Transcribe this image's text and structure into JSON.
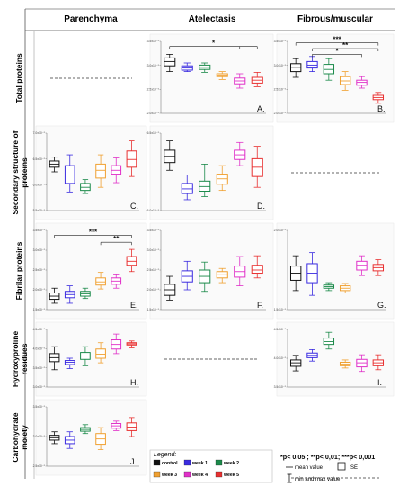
{
  "column_headers": [
    "Parenchyma",
    "Atelectasis",
    "Fibrous/muscular"
  ],
  "row_headers": [
    "Total proteins",
    "Secondary structure of proteins",
    "Fibrilar proteins",
    "Hydroxyproline residues",
    "Carbohydrate moiety"
  ],
  "groups": [
    {
      "key": "control",
      "label": "control",
      "color": "#111111"
    },
    {
      "key": "week1",
      "label": "week 1",
      "color": "#3a2be0"
    },
    {
      "key": "week2",
      "label": "week 2",
      "color": "#1b8a4a"
    },
    {
      "key": "week3",
      "label": "week 3",
      "color": "#f0a030"
    },
    {
      "key": "week4",
      "label": "week 4",
      "color": "#e030c8"
    },
    {
      "key": "week5",
      "label": "week 5",
      "color": "#e83030"
    }
  ],
  "legend": {
    "title": "Legend:",
    "pvalues": "*p< 0,05 ; **p< 0,01; ***p< 0,001",
    "mean_label": "mean value",
    "se_label": "SE",
    "minmax_label": "min and max value"
  },
  "chart_data": [
    {
      "type": "box",
      "panel": "A.",
      "row": 0,
      "col": 1,
      "ylim": [
        0,
        1
      ],
      "yticks": [
        "3.5x10⁻⁵",
        "3.0x10⁻⁵",
        "2.5x10⁻⁵",
        "2.0x10⁻⁵"
      ],
      "boxes": [
        {
          "group": "control",
          "min": 0.58,
          "q1": 0.66,
          "median": 0.71,
          "mean": 0.72,
          "q3": 0.77,
          "max": 0.82
        },
        {
          "group": "week1",
          "min": 0.58,
          "q1": 0.6,
          "median": 0.63,
          "mean": 0.63,
          "q3": 0.66,
          "max": 0.7
        },
        {
          "group": "week2",
          "min": 0.57,
          "q1": 0.61,
          "median": 0.64,
          "mean": 0.64,
          "q3": 0.67,
          "max": 0.7
        },
        {
          "group": "week3",
          "min": 0.47,
          "q1": 0.51,
          "median": 0.53,
          "mean": 0.53,
          "q3": 0.55,
          "max": 0.58
        },
        {
          "group": "week4",
          "min": 0.35,
          "q1": 0.41,
          "median": 0.45,
          "mean": 0.45,
          "q3": 0.49,
          "max": 0.55
        },
        {
          "group": "week5",
          "min": 0.37,
          "q1": 0.42,
          "median": 0.45,
          "mean": 0.46,
          "q3": 0.5,
          "max": 0.57
        }
      ],
      "significance": [
        {
          "from": 0,
          "to": 5,
          "label": "*",
          "level": 0.93,
          "drop": 4
        }
      ]
    },
    {
      "type": "box",
      "panel": "B.",
      "row": 0,
      "col": 2,
      "ylim": [
        0,
        1
      ],
      "yticks": [
        "3.5x10⁻⁵",
        "3.0x10⁻⁵",
        "2.5x10⁻⁵",
        "2.0x10⁻⁵"
      ],
      "boxes": [
        {
          "group": "control",
          "min": 0.5,
          "q1": 0.58,
          "median": 0.63,
          "mean": 0.64,
          "q3": 0.69,
          "max": 0.76
        },
        {
          "group": "week1",
          "min": 0.58,
          "q1": 0.63,
          "median": 0.67,
          "mean": 0.67,
          "q3": 0.72,
          "max": 0.79
        },
        {
          "group": "week2",
          "min": 0.46,
          "q1": 0.55,
          "median": 0.6,
          "mean": 0.61,
          "q3": 0.68,
          "max": 0.76
        },
        {
          "group": "week3",
          "min": 0.32,
          "q1": 0.4,
          "median": 0.45,
          "mean": 0.45,
          "q3": 0.51,
          "max": 0.58
        },
        {
          "group": "week4",
          "min": 0.35,
          "q1": 0.39,
          "median": 0.43,
          "mean": 0.43,
          "q3": 0.46,
          "max": 0.51
        },
        {
          "group": "week5",
          "min": 0.14,
          "q1": 0.19,
          "median": 0.22,
          "mean": 0.22,
          "q3": 0.25,
          "max": 0.29
        }
      ],
      "significance": [
        {
          "from": 0,
          "to": 5,
          "label": "***",
          "level": 0.98
        },
        {
          "from": 1,
          "to": 5,
          "label": "**",
          "level": 0.9
        },
        {
          "from": 1,
          "to": 4,
          "label": "*",
          "level": 0.82
        }
      ]
    },
    {
      "type": "box",
      "panel": "C.",
      "row": 1,
      "col": 0,
      "ylim": [
        0,
        1
      ],
      "yticks": [
        "7.0x10⁻⁵",
        "6.5x10⁻⁵",
        "6.0x10⁻⁵",
        "5.5x10⁻⁵"
      ],
      "boxes": [
        {
          "group": "control",
          "min": 0.5,
          "q1": 0.56,
          "median": 0.6,
          "mean": 0.6,
          "q3": 0.64,
          "max": 0.69
        },
        {
          "group": "week1",
          "min": 0.24,
          "q1": 0.35,
          "median": 0.46,
          "mean": 0.46,
          "q3": 0.58,
          "max": 0.72
        },
        {
          "group": "week2",
          "min": 0.22,
          "q1": 0.26,
          "median": 0.3,
          "mean": 0.3,
          "q3": 0.35,
          "max": 0.4
        },
        {
          "group": "week3",
          "min": 0.3,
          "q1": 0.42,
          "median": 0.52,
          "mean": 0.52,
          "q3": 0.6,
          "max": 0.72
        },
        {
          "group": "week4",
          "min": 0.36,
          "q1": 0.47,
          "median": 0.52,
          "mean": 0.52,
          "q3": 0.58,
          "max": 0.68
        },
        {
          "group": "week5",
          "min": 0.44,
          "q1": 0.56,
          "median": 0.66,
          "mean": 0.66,
          "q3": 0.77,
          "max": 0.9
        }
      ],
      "significance": []
    },
    {
      "type": "box",
      "panel": "D.",
      "row": 1,
      "col": 1,
      "ylim": [
        0,
        1
      ],
      "yticks": [
        "6.5x10⁻⁵",
        "6.0x10⁻⁵"
      ],
      "boxes": [
        {
          "group": "control",
          "min": 0.52,
          "q1": 0.62,
          "median": 0.69,
          "mean": 0.7,
          "q3": 0.78,
          "max": 0.9
        },
        {
          "group": "week1",
          "min": 0.14,
          "q1": 0.22,
          "median": 0.28,
          "mean": 0.28,
          "q3": 0.35,
          "max": 0.46
        },
        {
          "group": "week2",
          "min": 0.18,
          "q1": 0.25,
          "median": 0.31,
          "mean": 0.31,
          "q3": 0.38,
          "max": 0.6
        },
        {
          "group": "week3",
          "min": 0.26,
          "q1": 0.34,
          "median": 0.41,
          "mean": 0.41,
          "q3": 0.47,
          "max": 0.58
        },
        {
          "group": "week4",
          "min": 0.58,
          "q1": 0.66,
          "median": 0.72,
          "mean": 0.72,
          "q3": 0.78,
          "max": 0.88
        },
        {
          "group": "week5",
          "min": 0.3,
          "q1": 0.44,
          "median": 0.56,
          "mean": 0.56,
          "q3": 0.67,
          "max": 0.83
        }
      ],
      "significance": []
    },
    {
      "type": "box",
      "panel": "E.",
      "row": 2,
      "col": 0,
      "ylim": [
        0,
        1
      ],
      "yticks": [
        "3.5x10⁻⁵",
        "3.0x10⁻⁵",
        "2.5x10⁻⁵",
        "2.0x10⁻⁵",
        "1.5x10⁻⁵"
      ],
      "boxes": [
        {
          "group": "control",
          "min": 0.08,
          "q1": 0.13,
          "median": 0.17,
          "mean": 0.17,
          "q3": 0.21,
          "max": 0.27
        },
        {
          "group": "week1",
          "min": 0.08,
          "q1": 0.15,
          "median": 0.19,
          "mean": 0.19,
          "q3": 0.23,
          "max": 0.3
        },
        {
          "group": "week2",
          "min": 0.14,
          "q1": 0.17,
          "median": 0.2,
          "mean": 0.2,
          "q3": 0.23,
          "max": 0.27
        },
        {
          "group": "week3",
          "min": 0.26,
          "q1": 0.31,
          "median": 0.35,
          "mean": 0.35,
          "q3": 0.4,
          "max": 0.47
        },
        {
          "group": "week4",
          "min": 0.27,
          "q1": 0.32,
          "median": 0.36,
          "mean": 0.36,
          "q3": 0.4,
          "max": 0.45
        },
        {
          "group": "week5",
          "min": 0.48,
          "q1": 0.56,
          "median": 0.61,
          "mean": 0.61,
          "q3": 0.67,
          "max": 0.76
        }
      ],
      "significance": [
        {
          "from": 0,
          "to": 5,
          "label": "***",
          "level": 0.94
        },
        {
          "from": 3,
          "to": 5,
          "label": "**",
          "level": 0.85
        }
      ]
    },
    {
      "type": "box",
      "panel": "F.",
      "row": 2,
      "col": 1,
      "ylim": [
        0,
        1
      ],
      "yticks": [
        "3.5x10⁻⁵",
        "3.0x10⁻⁵",
        "2.5x10⁻⁵",
        "2.0x10⁻⁵",
        "1.5x10⁻⁵"
      ],
      "boxes": [
        {
          "group": "control",
          "min": 0.12,
          "q1": 0.18,
          "median": 0.25,
          "mean": 0.25,
          "q3": 0.32,
          "max": 0.42
        },
        {
          "group": "week1",
          "min": 0.25,
          "q1": 0.35,
          "median": 0.42,
          "mean": 0.42,
          "q3": 0.49,
          "max": 0.61
        },
        {
          "group": "week2",
          "min": 0.23,
          "q1": 0.34,
          "median": 0.42,
          "mean": 0.42,
          "q3": 0.5,
          "max": 0.6
        },
        {
          "group": "week3",
          "min": 0.34,
          "q1": 0.4,
          "median": 0.44,
          "mean": 0.44,
          "q3": 0.48,
          "max": 0.52
        },
        {
          "group": "week4",
          "min": 0.3,
          "q1": 0.41,
          "median": 0.48,
          "mean": 0.48,
          "q3": 0.55,
          "max": 0.67
        },
        {
          "group": "week5",
          "min": 0.4,
          "q1": 0.46,
          "median": 0.5,
          "mean": 0.5,
          "q3": 0.56,
          "max": 0.68
        }
      ],
      "significance": []
    },
    {
      "type": "box",
      "panel": "G.",
      "row": 2,
      "col": 2,
      "ylim": [
        0,
        1
      ],
      "yticks": [
        "2.0x10⁻⁵",
        "1.5x10⁻⁵"
      ],
      "boxes": [
        {
          "group": "control",
          "min": 0.24,
          "q1": 0.37,
          "median": 0.46,
          "mean": 0.46,
          "q3": 0.55,
          "max": 0.68
        },
        {
          "group": "week1",
          "min": 0.18,
          "q1": 0.34,
          "median": 0.46,
          "mean": 0.46,
          "q3": 0.58,
          "max": 0.72
        },
        {
          "group": "week2",
          "min": 0.24,
          "q1": 0.27,
          "median": 0.29,
          "mean": 0.29,
          "q3": 0.31,
          "max": 0.34
        },
        {
          "group": "week3",
          "min": 0.21,
          "q1": 0.24,
          "median": 0.27,
          "mean": 0.27,
          "q3": 0.3,
          "max": 0.33
        },
        {
          "group": "week4",
          "min": 0.43,
          "q1": 0.5,
          "median": 0.56,
          "mean": 0.56,
          "q3": 0.61,
          "max": 0.68
        },
        {
          "group": "week5",
          "min": 0.43,
          "q1": 0.49,
          "median": 0.53,
          "mean": 0.53,
          "q3": 0.57,
          "max": 0.63
        }
      ],
      "significance": []
    },
    {
      "type": "box",
      "panel": "H.",
      "row": 3,
      "col": 0,
      "ylim": [
        0,
        1
      ],
      "yticks": [
        "4.5x10⁻⁵",
        "4.0x10⁻⁵",
        "3.5x10⁻⁵",
        "3.0x10⁻⁵"
      ],
      "boxes": [
        {
          "group": "control",
          "min": 0.3,
          "q1": 0.44,
          "median": 0.5,
          "mean": 0.51,
          "q3": 0.58,
          "max": 0.7
        },
        {
          "group": "week1",
          "min": 0.32,
          "q1": 0.39,
          "median": 0.43,
          "mean": 0.43,
          "q3": 0.46,
          "max": 0.5
        },
        {
          "group": "week2",
          "min": 0.37,
          "q1": 0.48,
          "median": 0.54,
          "mean": 0.54,
          "q3": 0.6,
          "max": 0.7
        },
        {
          "group": "week3",
          "min": 0.42,
          "q1": 0.5,
          "median": 0.57,
          "mean": 0.57,
          "q3": 0.66,
          "max": 0.77
        },
        {
          "group": "week4",
          "min": 0.58,
          "q1": 0.66,
          "median": 0.75,
          "mean": 0.74,
          "q3": 0.82,
          "max": 0.92
        },
        {
          "group": "week5",
          "min": 0.68,
          "q1": 0.73,
          "median": 0.75,
          "mean": 0.75,
          "q3": 0.77,
          "max": 0.8
        }
      ],
      "significance": []
    },
    {
      "type": "box",
      "panel": "I.",
      "row": 3,
      "col": 2,
      "ylim": [
        0,
        1
      ],
      "yticks": [
        "4.5x10⁻⁵",
        "4.0x10⁻⁵",
        "3.5x10⁻⁵"
      ],
      "boxes": [
        {
          "group": "control",
          "min": 0.28,
          "q1": 0.36,
          "median": 0.42,
          "mean": 0.42,
          "q3": 0.47,
          "max": 0.55
        },
        {
          "group": "week1",
          "min": 0.45,
          "q1": 0.51,
          "median": 0.55,
          "mean": 0.55,
          "q3": 0.59,
          "max": 0.65
        },
        {
          "group": "week2",
          "min": 0.66,
          "q1": 0.74,
          "median": 0.79,
          "mean": 0.79,
          "q3": 0.85,
          "max": 0.95
        },
        {
          "group": "week3",
          "min": 0.33,
          "q1": 0.37,
          "median": 0.4,
          "mean": 0.4,
          "q3": 0.43,
          "max": 0.47
        },
        {
          "group": "week4",
          "min": 0.27,
          "q1": 0.35,
          "median": 0.42,
          "mean": 0.42,
          "q3": 0.48,
          "max": 0.56
        },
        {
          "group": "week5",
          "min": 0.3,
          "q1": 0.37,
          "median": 0.42,
          "mean": 0.42,
          "q3": 0.47,
          "max": 0.56
        }
      ],
      "significance": []
    },
    {
      "type": "box",
      "panel": "J.",
      "row": 4,
      "col": 0,
      "ylim": [
        0,
        1
      ],
      "yticks": [
        "3.5x10⁻⁵",
        "3.0x10⁻⁵",
        "2.5x10⁻⁵"
      ],
      "boxes": [
        {
          "group": "control",
          "min": 0.38,
          "q1": 0.44,
          "median": 0.48,
          "mean": 0.48,
          "q3": 0.52,
          "max": 0.58
        },
        {
          "group": "week1",
          "min": 0.3,
          "q1": 0.38,
          "median": 0.44,
          "mean": 0.44,
          "q3": 0.5,
          "max": 0.58
        },
        {
          "group": "week2",
          "min": 0.55,
          "q1": 0.59,
          "median": 0.62,
          "mean": 0.62,
          "q3": 0.65,
          "max": 0.7
        },
        {
          "group": "week3",
          "min": 0.28,
          "q1": 0.37,
          "median": 0.46,
          "mean": 0.46,
          "q3": 0.55,
          "max": 0.65
        },
        {
          "group": "week4",
          "min": 0.6,
          "q1": 0.64,
          "median": 0.68,
          "mean": 0.68,
          "q3": 0.72,
          "max": 0.76
        },
        {
          "group": "week5",
          "min": 0.5,
          "q1": 0.6,
          "median": 0.66,
          "mean": 0.66,
          "q3": 0.73,
          "max": 0.82
        }
      ],
      "significance": []
    }
  ]
}
